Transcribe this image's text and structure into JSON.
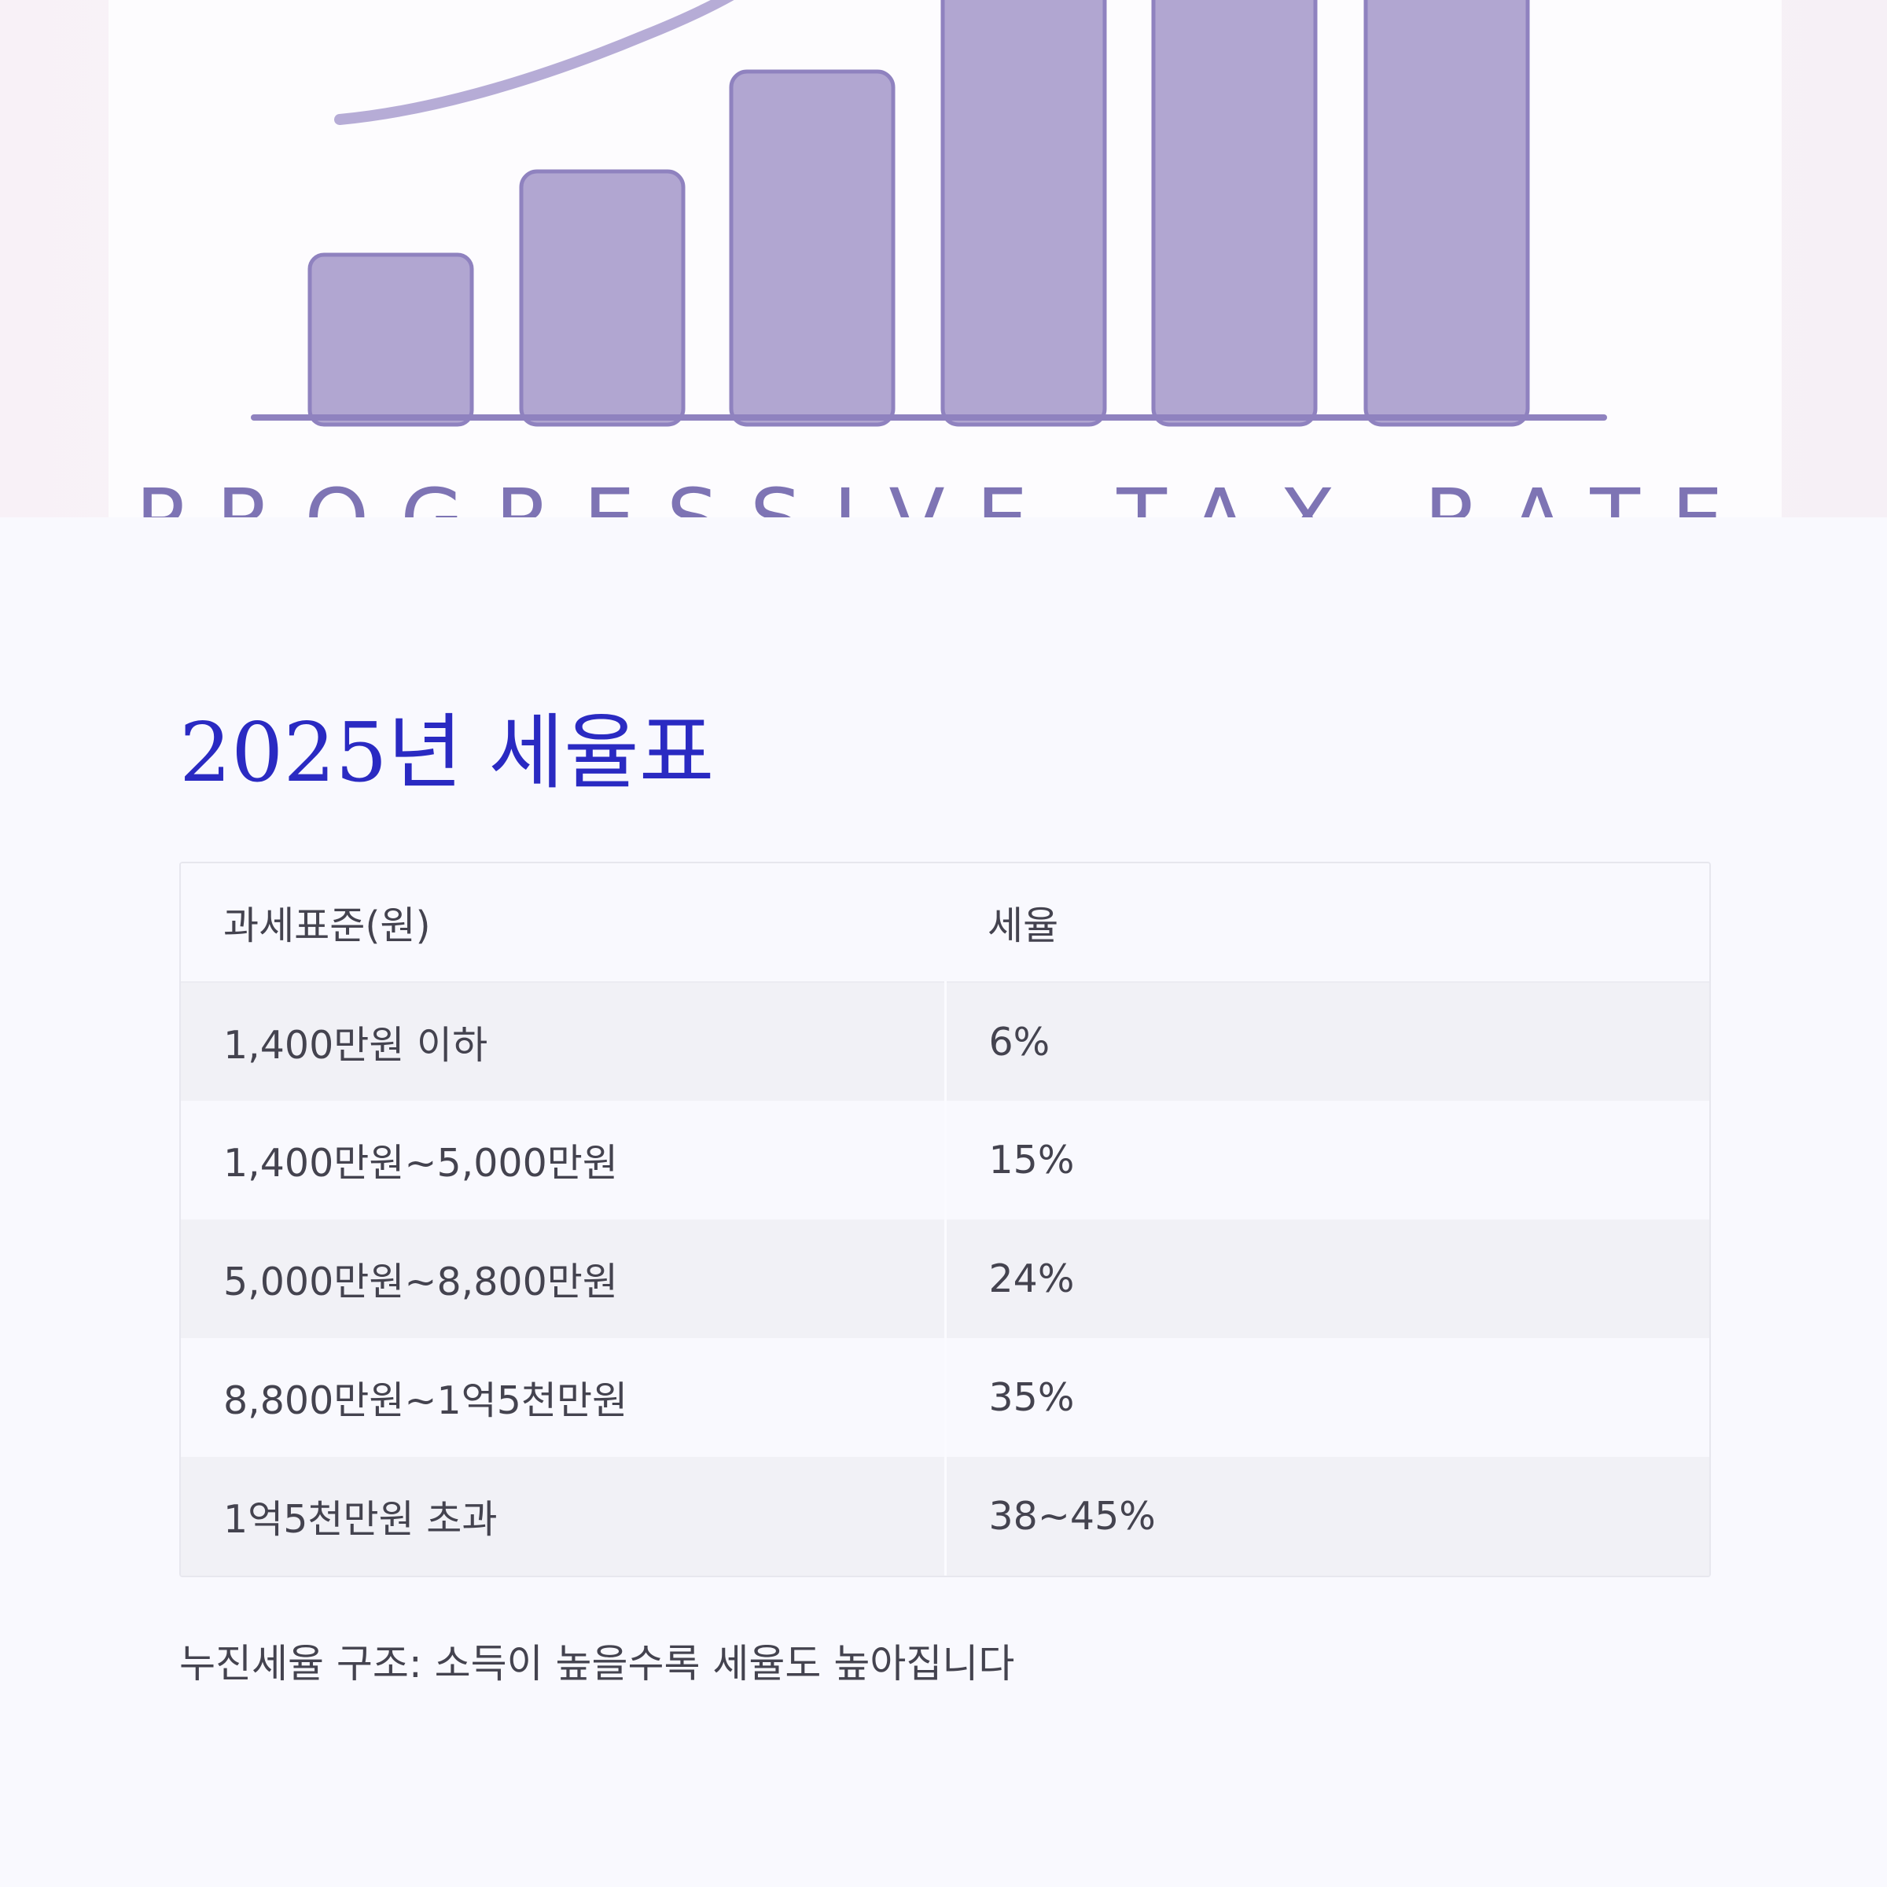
{
  "hero": {
    "caption": "PROGRESSIVE TAX RATE",
    "image_alt": "rising bar chart illustration",
    "colors": {
      "bar_fill": "#b1a6d1",
      "bar_stroke": "#8f82bf",
      "baseline": "#8f82bf",
      "curve": "#b6acd6",
      "caption": "#7e74b4",
      "card": "#fdfcfe",
      "backdrop": "#f8f1f7"
    }
  },
  "section": {
    "title": "2025년 세율표",
    "title_color": "#2a2ac2"
  },
  "table": {
    "headers": [
      "과세표준(원)",
      "세율"
    ],
    "rows": [
      [
        "1,400만원 이하",
        "6%"
      ],
      [
        "1,400만원~5,000만원",
        "15%"
      ],
      [
        "5,000만원~8,800만원",
        "24%"
      ],
      [
        "8,800만원~1억5천만원",
        "35%"
      ],
      [
        "1억5천만원 초과",
        "38~45%"
      ]
    ]
  },
  "footnote": "누진세율 구조: 소득이 높을수록 세율도 높아집니다"
}
